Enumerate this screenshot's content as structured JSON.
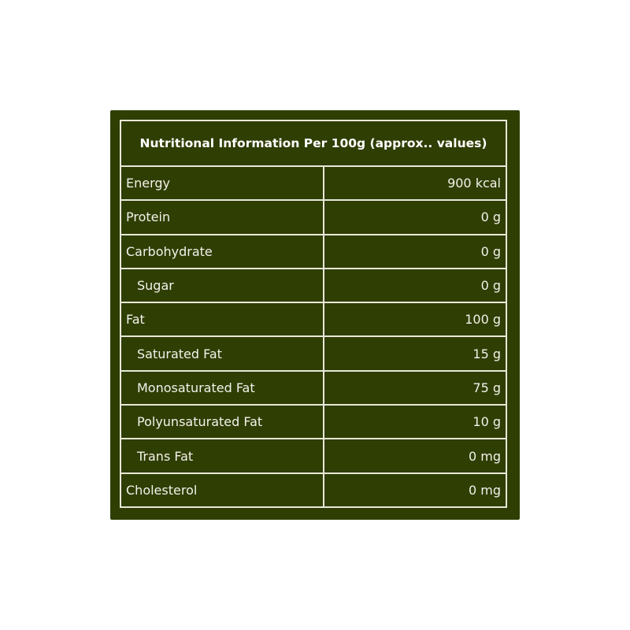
{
  "table": {
    "title": "Nutritional Information Per 100g (approx.. values)",
    "rows": [
      [
        "Energy",
        "900 kcal"
      ],
      [
        "Protein",
        "0 g"
      ],
      [
        "Carbohydrate",
        "0 g"
      ],
      [
        "Sugar",
        "0 g"
      ],
      [
        "Fat",
        "100 g"
      ],
      [
        "Saturated Fat",
        "15 g"
      ],
      [
        "Monosaturated Fat",
        "75 g"
      ],
      [
        "Polyunsaturated Fat",
        "10 g"
      ],
      [
        "Trans Fat",
        "0 mg"
      ],
      [
        "Cholesterol",
        "0 mg"
      ]
    ],
    "indented": [
      false,
      false,
      false,
      true,
      false,
      true,
      true,
      true,
      true,
      false
    ]
  }
}
